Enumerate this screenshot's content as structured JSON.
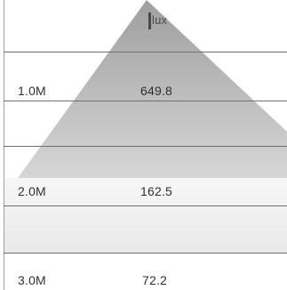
{
  "unit": "lux",
  "colors": {
    "cone_top": "#9f9f9f",
    "cone_bottom": "#d4d4d4",
    "grid_line": "#6f6f6f",
    "text": "#303030",
    "background": "#ffffff"
  },
  "rows": [
    {
      "distance": "1.0M",
      "lux": "649.8"
    },
    {
      "distance": "2.0M",
      "lux": "162.5"
    },
    {
      "distance": "3.0M",
      "lux": "72.2"
    }
  ]
}
